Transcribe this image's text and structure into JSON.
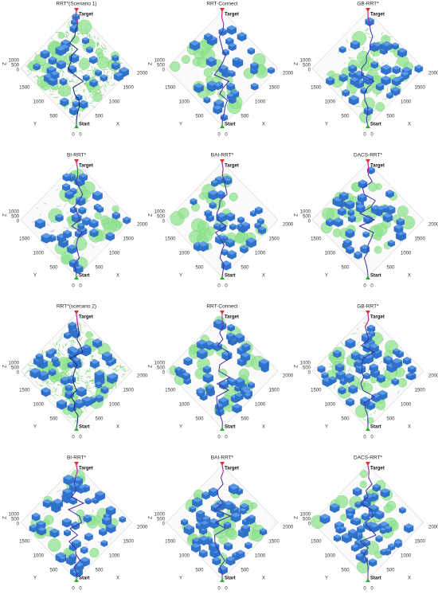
{
  "panels": [
    {
      "title": "RRT*(Scenario 1)"
    },
    {
      "title": "RRT-Connect"
    },
    {
      "title": "GB-RRT*"
    },
    {
      "title": "BI-RRT*"
    },
    {
      "title": "BAI-RRT*"
    },
    {
      "title": "DACS-RRT*"
    },
    {
      "title": "RRT*(scenario 2)"
    },
    {
      "title": "RRT-Connect"
    },
    {
      "title": "GB-RRT*"
    },
    {
      "title": "BI-RRT*"
    },
    {
      "title": "BAI-RRT*"
    },
    {
      "title": "DACS-RRT*"
    }
  ],
  "axes": {
    "x_label": "X",
    "y_label": "Y",
    "z_label": "Z",
    "xticks": [
      500,
      1000,
      1500,
      2000
    ],
    "yticks": [
      500,
      1000,
      1500
    ],
    "zticks": [
      0,
      500,
      1000
    ],
    "origin_labels": [
      0,
      0
    ]
  },
  "markers": {
    "target": "Target",
    "start": "Start"
  }
}
